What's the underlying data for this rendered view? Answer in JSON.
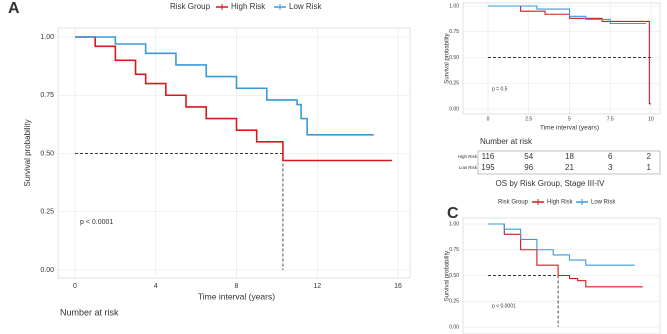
{
  "chart_data": [
    {
      "type": "line",
      "step": true,
      "panel_label": "A",
      "legend_title": "Risk Group",
      "xlabel": "Time interval (years)",
      "ylabel": "Survival probability",
      "annotation": "p < 0.0001",
      "risk_title": "Number at risk",
      "grid": true,
      "xlim": [
        0,
        16
      ],
      "xticks": [
        0,
        4,
        8,
        12,
        16
      ],
      "ylim": [
        0,
        1
      ],
      "yticks": [
        {
          "value": 0,
          "label": "0.00"
        },
        {
          "value": 0.25,
          "label": "0.25"
        },
        {
          "value": 0.5,
          "label": "0.50"
        },
        {
          "value": 0.75,
          "label": "0.75"
        },
        {
          "value": 1,
          "label": "1.00"
        }
      ],
      "hline": 0.5,
      "vline": 10.3,
      "series": [
        {
          "name": "High Risk",
          "color": "#d7191c",
          "x": [
            0,
            1,
            2,
            3,
            3.5,
            4.5,
            5.5,
            6.5,
            8,
            9,
            10.3,
            15.7
          ],
          "values": [
            1,
            0.96,
            0.9,
            0.84,
            0.8,
            0.75,
            0.7,
            0.65,
            0.6,
            0.55,
            0.47,
            0.47
          ]
        },
        {
          "name": "Low Risk",
          "color": "#3a9ad9",
          "x": [
            0,
            2,
            3.5,
            5,
            6.5,
            8,
            9.5,
            11,
            11.2,
            11.5,
            14.8
          ],
          "values": [
            1,
            0.97,
            0.93,
            0.88,
            0.83,
            0.78,
            0.73,
            0.71,
            0.65,
            0.58,
            0.58
          ]
        }
      ]
    },
    {
      "type": "line",
      "step": true,
      "xlabel": "Time interval (years)",
      "ylabel": "Survival probability",
      "annotation": "p = 0.5",
      "risk_title": "Number at risk",
      "grid": true,
      "xlim": [
        0,
        10
      ],
      "xticks": [
        0,
        2.5,
        5,
        7.5,
        10
      ],
      "ylim": [
        0,
        1
      ],
      "yticks": [
        {
          "value": 0,
          "label": "0.00"
        },
        {
          "value": 0.25,
          "label": "0.25"
        },
        {
          "value": 0.5,
          "label": "0.50"
        },
        {
          "value": 0.75,
          "label": "0.75"
        },
        {
          "value": 1,
          "label": "1.00"
        }
      ],
      "hline": 0.5,
      "series": [
        {
          "name": "High Risk",
          "color": "#d7191c",
          "x": [
            0,
            2,
            3.5,
            5,
            7,
            9.9,
            10
          ],
          "values": [
            1,
            0.95,
            0.92,
            0.88,
            0.85,
            0.05,
            0.05
          ],
          "risk": [
            116,
            54,
            18,
            6,
            2
          ]
        },
        {
          "name": "Low Risk",
          "color": "#3a9ad9",
          "x": [
            0,
            3,
            5,
            6,
            7.5,
            9.7
          ],
          "values": [
            1,
            0.97,
            0.9,
            0.87,
            0.83,
            0.83
          ],
          "risk": [
            195,
            96,
            21,
            3,
            1
          ]
        }
      ]
    },
    {
      "type": "line",
      "step": true,
      "panel_label": "C",
      "title": "OS by Risk Group, Stage III-IV",
      "legend_title": "Risk Group",
      "ylabel": "Survival probability",
      "annotation": "p < 0.0001",
      "grid": true,
      "xlim": [
        0,
        10
      ],
      "ylim": [
        0,
        1
      ],
      "yticks": [
        {
          "value": 0,
          "label": "0.00"
        },
        {
          "value": 0.25,
          "label": "0.25"
        },
        {
          "value": 0.5,
          "label": "0.50"
        },
        {
          "value": 0.75,
          "label": "0.75"
        },
        {
          "value": 1,
          "label": "1.00"
        }
      ],
      "hline": 0.5,
      "vline": 4.3,
      "series": [
        {
          "name": "High Risk",
          "color": "#d7191c",
          "x": [
            0,
            1,
            2,
            3,
            4.3,
            5,
            5.5,
            6,
            9.5
          ],
          "values": [
            1,
            0.9,
            0.75,
            0.6,
            0.5,
            0.47,
            0.45,
            0.39,
            0.39
          ]
        },
        {
          "name": "Low Risk",
          "color": "#3a9ad9",
          "x": [
            0,
            1,
            2,
            3,
            4,
            5,
            6,
            9
          ],
          "values": [
            1,
            0.95,
            0.85,
            0.75,
            0.7,
            0.65,
            0.6,
            0.6
          ]
        }
      ]
    }
  ]
}
